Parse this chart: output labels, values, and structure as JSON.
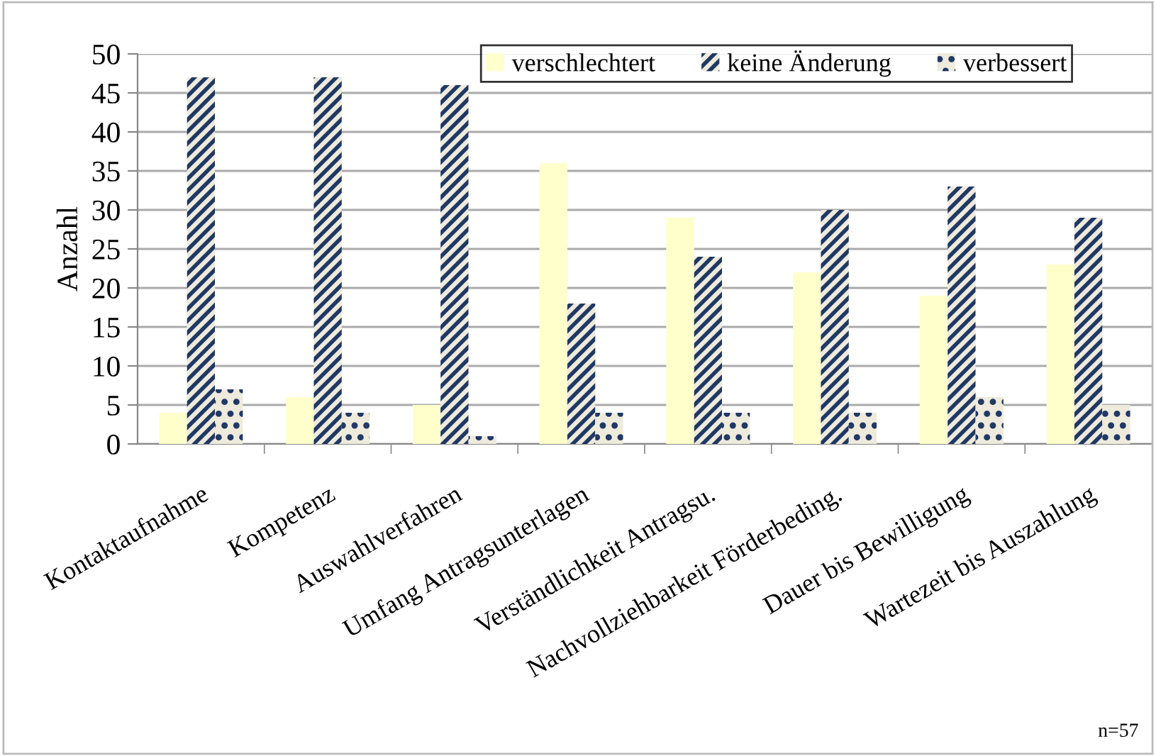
{
  "chart_data": {
    "type": "bar",
    "ylabel": "Anzahl",
    "categories": [
      "Kontaktaufnahme",
      "Kompetenz",
      "Auswahlverfahren",
      "Umfang Antragsunterlagen",
      "Verständlichkeit Antragsu.",
      "Nachvollziehbarkeit Förderbeding.",
      "Dauer bis Bewilligung",
      "Wartezeit bis Auszahlung"
    ],
    "series": [
      {
        "name": "verschlechtert",
        "color": "#ffffcc",
        "values": [
          4,
          6,
          5,
          36,
          29,
          22,
          19,
          23
        ]
      },
      {
        "name": "keine Änderung",
        "color": "#eeeadc",
        "values": [
          47,
          47,
          46,
          18,
          24,
          30,
          33,
          29
        ]
      },
      {
        "name": "verbessert",
        "color": "#eeeadc",
        "values": [
          7,
          4,
          1,
          4,
          4,
          4,
          6,
          5
        ]
      }
    ],
    "ylim": [
      0,
      50
    ],
    "yticks": [
      0,
      5,
      10,
      15,
      20,
      25,
      30,
      35,
      40,
      45,
      50
    ],
    "grid": "y",
    "legend": "top",
    "annotations": [
      "n=57"
    ]
  }
}
